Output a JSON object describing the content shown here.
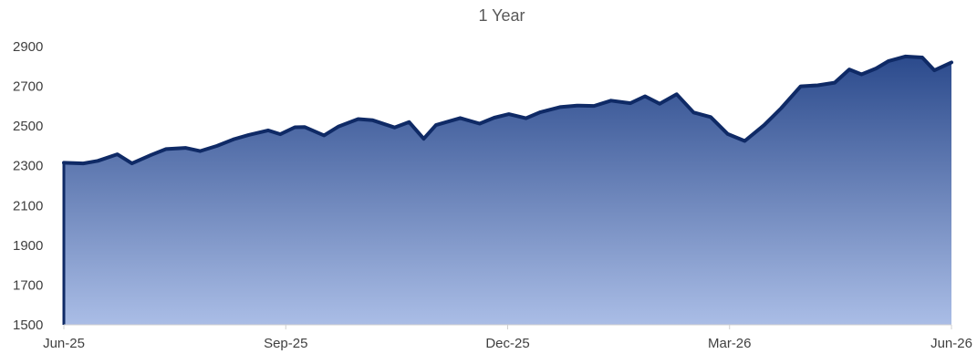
{
  "chart_data": {
    "type": "area",
    "title": "1 Year",
    "xlabel": "",
    "ylabel": "",
    "ylim": [
      1500,
      2900
    ],
    "y_ticks": [
      "2900",
      "2700",
      "2500",
      "2300",
      "2100",
      "1900",
      "1700",
      "1500"
    ],
    "x_ticks": [
      "Jun-25",
      "Sep-25",
      "Dec-25",
      "Mar-26",
      "Jun-26"
    ],
    "x_range": [
      "2025-06-01",
      "2026-06-01"
    ],
    "grid": false,
    "legend": "none",
    "colors": {
      "line": "#0f2a66",
      "fill_top": "#2b4a8c",
      "fill_bottom": "#aabde6"
    },
    "series": [
      {
        "x": [
          "2025-06-01",
          "2025-06-09",
          "2025-06-15",
          "2025-06-23",
          "2025-06-29",
          "2025-07-07",
          "2025-07-13",
          "2025-07-21",
          "2025-07-27",
          "2025-08-03",
          "2025-08-10",
          "2025-08-16",
          "2025-08-24",
          "2025-08-29",
          "2025-09-04",
          "2025-09-08",
          "2025-09-16",
          "2025-09-22",
          "2025-09-30",
          "2025-10-06",
          "2025-10-15",
          "2025-10-21",
          "2025-10-27",
          "2025-11-01",
          "2025-11-11",
          "2025-11-19",
          "2025-11-25",
          "2025-12-01",
          "2025-12-08",
          "2025-12-14",
          "2025-12-22",
          "2025-12-29",
          "2026-01-05",
          "2026-01-12",
          "2026-01-20",
          "2026-01-26",
          "2026-02-01",
          "2026-02-08",
          "2026-02-15",
          "2026-02-22",
          "2026-03-01",
          "2026-03-08",
          "2026-03-16",
          "2026-03-23",
          "2026-03-31",
          "2026-04-07",
          "2026-04-14",
          "2026-04-20",
          "2026-04-25",
          "2026-05-01",
          "2026-05-06",
          "2026-05-13",
          "2026-05-20",
          "2026-05-25",
          "2026-06-01"
        ],
        "values": [
          2315,
          2312,
          2325,
          2358,
          2312,
          2355,
          2384,
          2390,
          2374,
          2400,
          2434,
          2455,
          2478,
          2459,
          2494,
          2495,
          2453,
          2498,
          2535,
          2529,
          2493,
          2520,
          2436,
          2505,
          2540,
          2512,
          2542,
          2560,
          2539,
          2570,
          2595,
          2603,
          2601,
          2628,
          2615,
          2650,
          2612,
          2660,
          2568,
          2545,
          2460,
          2425,
          2505,
          2590,
          2700,
          2705,
          2718,
          2785,
          2760,
          2790,
          2826,
          2850,
          2845,
          2780,
          2820
        ]
      }
    ]
  }
}
